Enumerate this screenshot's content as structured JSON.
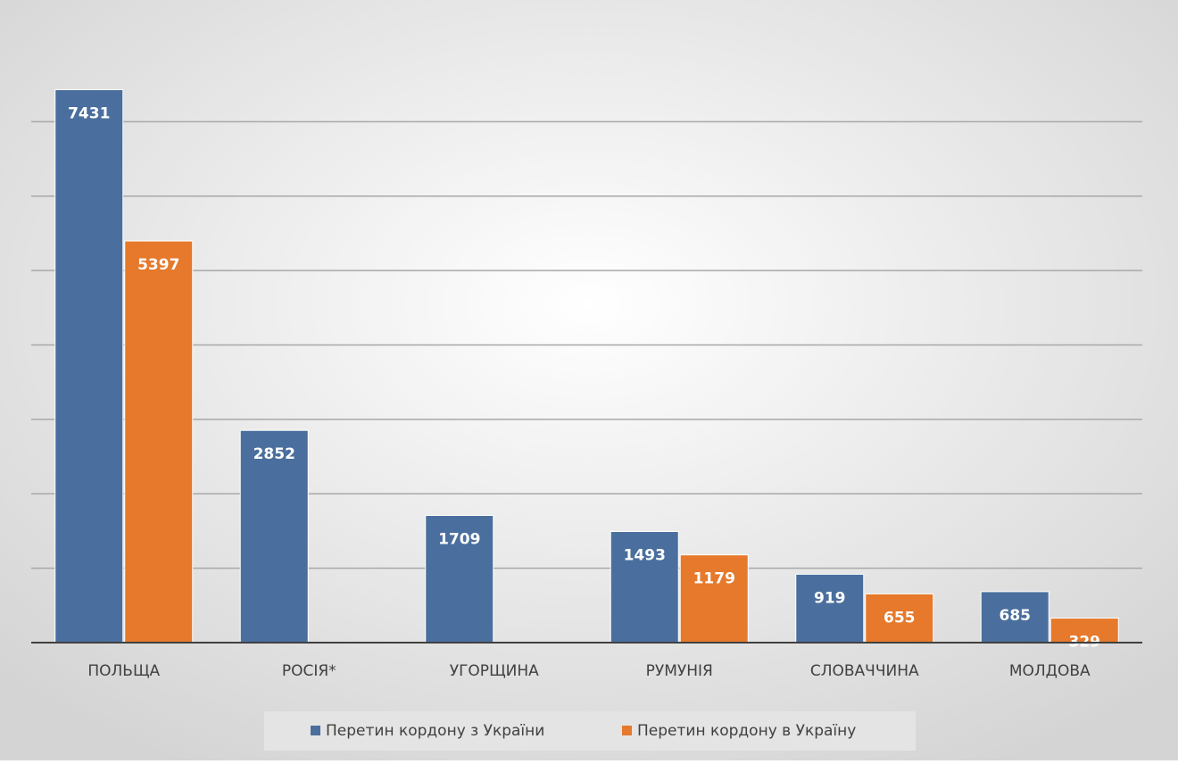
{
  "chart_data": {
    "type": "bar",
    "categories": [
      "ПОЛЬЩА",
      "РОСІЯ*",
      "УГОРЩИНА",
      "РУМУНІЯ",
      "СЛОВАЧЧИНА",
      "МОЛДОВА"
    ],
    "series": [
      {
        "name": "Перетин кордону з України",
        "color": "#4a6f9e",
        "values": [
          7431,
          2852,
          1709,
          1493,
          919,
          685
        ]
      },
      {
        "name": "Перетин кордону в Україну",
        "color": "#e6792b",
        "values": [
          5397,
          null,
          null,
          1179,
          655,
          329
        ]
      }
    ],
    "ylim": [
      0,
      8000
    ],
    "yticks": [
      1000,
      2000,
      3000,
      4000,
      5000,
      6000,
      7000
    ],
    "grid": true,
    "legend": "bottom"
  }
}
